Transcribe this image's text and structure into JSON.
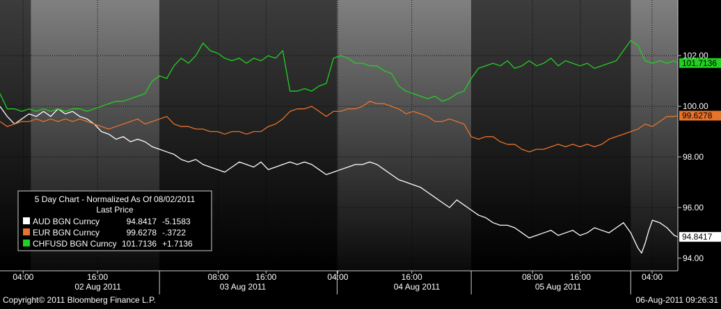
{
  "chart_data": {
    "type": "line",
    "legend": {
      "title": "5 Day Chart - Normalized As Of 08/02/2011",
      "subtitle": "Last Price",
      "placement": "bottom-left"
    },
    "ylim": [
      93.5,
      104.2
    ],
    "y_ticks": [
      "94.00",
      "96.00",
      "98.00",
      "100.00",
      "102.00"
    ],
    "y_tick_values": [
      94,
      96,
      98,
      100,
      102
    ],
    "x_ticks": [
      {
        "label": "04:00",
        "t": 0.064
      },
      {
        "label": "16:00",
        "t": 0.269
      },
      {
        "label": "08:00",
        "t": 0.602
      },
      {
        "label": "16:00",
        "t": 0.734
      },
      {
        "label": "04:00",
        "t": 0.932
      },
      {
        "label": "16:00",
        "t": 1.136
      },
      {
        "label": "08:00",
        "t": 1.469
      },
      {
        "label": "16:00",
        "t": 1.601
      },
      {
        "label": "04:00",
        "t": 1.799
      }
    ],
    "day_labels": [
      {
        "label": "02 Aug 2011",
        "t": 0.27
      },
      {
        "label": "03 Aug 2011",
        "t": 0.67
      },
      {
        "label": "04 Aug 2011",
        "t": 1.15
      },
      {
        "label": "05 Aug 2011",
        "t": 1.54
      }
    ],
    "t_range": [
      0,
      1.87
    ],
    "series": [
      {
        "name": "AUD BGN Curncy",
        "color": "#ffffff",
        "last_label": "94.8417",
        "last_price": "94.8417",
        "change": "-5.1583",
        "points": [
          [
            0,
            100.0
          ],
          [
            0.02,
            99.6
          ],
          [
            0.04,
            99.3
          ],
          [
            0.06,
            99.5
          ],
          [
            0.08,
            99.7
          ],
          [
            0.1,
            99.6
          ],
          [
            0.12,
            99.8
          ],
          [
            0.14,
            99.6
          ],
          [
            0.16,
            99.9
          ],
          [
            0.18,
            99.7
          ],
          [
            0.2,
            99.8
          ],
          [
            0.22,
            99.6
          ],
          [
            0.24,
            99.5
          ],
          [
            0.26,
            99.3
          ],
          [
            0.28,
            99.0
          ],
          [
            0.3,
            98.9
          ],
          [
            0.32,
            98.7
          ],
          [
            0.34,
            98.8
          ],
          [
            0.36,
            98.6
          ],
          [
            0.38,
            98.7
          ],
          [
            0.4,
            98.6
          ],
          [
            0.42,
            98.4
          ],
          [
            0.44,
            98.3
          ],
          [
            0.46,
            98.2
          ],
          [
            0.48,
            98.1
          ],
          [
            0.5,
            97.9
          ],
          [
            0.52,
            97.8
          ],
          [
            0.54,
            97.9
          ],
          [
            0.56,
            97.7
          ],
          [
            0.58,
            97.6
          ],
          [
            0.6,
            97.5
          ],
          [
            0.62,
            97.4
          ],
          [
            0.64,
            97.6
          ],
          [
            0.66,
            97.8
          ],
          [
            0.68,
            97.7
          ],
          [
            0.7,
            97.6
          ],
          [
            0.72,
            97.8
          ],
          [
            0.74,
            97.5
          ],
          [
            0.76,
            97.6
          ],
          [
            0.78,
            97.7
          ],
          [
            0.8,
            97.8
          ],
          [
            0.82,
            97.7
          ],
          [
            0.84,
            97.8
          ],
          [
            0.86,
            97.7
          ],
          [
            0.88,
            97.5
          ],
          [
            0.9,
            97.3
          ],
          [
            0.92,
            97.4
          ],
          [
            0.94,
            97.5
          ],
          [
            0.96,
            97.6
          ],
          [
            0.98,
            97.7
          ],
          [
            1.0,
            97.7
          ],
          [
            1.02,
            97.8
          ],
          [
            1.04,
            97.7
          ],
          [
            1.06,
            97.5
          ],
          [
            1.08,
            97.3
          ],
          [
            1.1,
            97.1
          ],
          [
            1.12,
            97.0
          ],
          [
            1.14,
            96.9
          ],
          [
            1.16,
            96.8
          ],
          [
            1.18,
            96.6
          ],
          [
            1.2,
            96.4
          ],
          [
            1.22,
            96.2
          ],
          [
            1.24,
            96.0
          ],
          [
            1.26,
            96.3
          ],
          [
            1.28,
            96.1
          ],
          [
            1.3,
            95.9
          ],
          [
            1.32,
            95.7
          ],
          [
            1.34,
            95.6
          ],
          [
            1.36,
            95.4
          ],
          [
            1.38,
            95.3
          ],
          [
            1.4,
            95.3
          ],
          [
            1.42,
            95.2
          ],
          [
            1.44,
            95.0
          ],
          [
            1.46,
            94.8
          ],
          [
            1.48,
            94.9
          ],
          [
            1.5,
            95.0
          ],
          [
            1.52,
            95.1
          ],
          [
            1.54,
            94.9
          ],
          [
            1.56,
            95.0
          ],
          [
            1.58,
            95.1
          ],
          [
            1.6,
            94.9
          ],
          [
            1.62,
            95.0
          ],
          [
            1.64,
            95.2
          ],
          [
            1.66,
            95.1
          ],
          [
            1.68,
            95.0
          ],
          [
            1.7,
            95.2
          ],
          [
            1.72,
            95.4
          ],
          [
            1.74,
            95.0
          ],
          [
            1.76,
            94.4
          ],
          [
            1.77,
            94.2
          ],
          [
            1.78,
            94.6
          ],
          [
            1.79,
            95.1
          ],
          [
            1.8,
            95.5
          ],
          [
            1.82,
            95.4
          ],
          [
            1.84,
            95.2
          ],
          [
            1.86,
            94.9
          ],
          [
            1.87,
            94.84
          ]
        ]
      },
      {
        "name": "EUR BGN Curncy",
        "color": "#e8732a",
        "last_label": "99.6278",
        "last_price": "99.6278",
        "change": "-.3722",
        "points": [
          [
            0,
            99.4
          ],
          [
            0.02,
            99.2
          ],
          [
            0.04,
            99.3
          ],
          [
            0.06,
            99.4
          ],
          [
            0.08,
            99.4
          ],
          [
            0.1,
            99.5
          ],
          [
            0.12,
            99.4
          ],
          [
            0.14,
            99.5
          ],
          [
            0.16,
            99.4
          ],
          [
            0.18,
            99.5
          ],
          [
            0.2,
            99.4
          ],
          [
            0.22,
            99.5
          ],
          [
            0.24,
            99.4
          ],
          [
            0.26,
            99.3
          ],
          [
            0.28,
            99.2
          ],
          [
            0.3,
            99.1
          ],
          [
            0.32,
            99.2
          ],
          [
            0.34,
            99.3
          ],
          [
            0.36,
            99.4
          ],
          [
            0.38,
            99.5
          ],
          [
            0.4,
            99.3
          ],
          [
            0.42,
            99.4
          ],
          [
            0.44,
            99.5
          ],
          [
            0.46,
            99.6
          ],
          [
            0.48,
            99.3
          ],
          [
            0.5,
            99.2
          ],
          [
            0.52,
            99.2
          ],
          [
            0.54,
            99.1
          ],
          [
            0.56,
            99.1
          ],
          [
            0.58,
            99.0
          ],
          [
            0.6,
            99.0
          ],
          [
            0.62,
            98.9
          ],
          [
            0.64,
            99.0
          ],
          [
            0.66,
            99.0
          ],
          [
            0.68,
            98.9
          ],
          [
            0.7,
            99.0
          ],
          [
            0.72,
            99.0
          ],
          [
            0.74,
            99.2
          ],
          [
            0.76,
            99.3
          ],
          [
            0.78,
            99.5
          ],
          [
            0.8,
            99.8
          ],
          [
            0.82,
            99.9
          ],
          [
            0.84,
            99.9
          ],
          [
            0.86,
            100.0
          ],
          [
            0.88,
            99.8
          ],
          [
            0.9,
            99.6
          ],
          [
            0.92,
            99.8
          ],
          [
            0.94,
            99.8
          ],
          [
            0.96,
            99.9
          ],
          [
            0.98,
            99.9
          ],
          [
            1.0,
            100.0
          ],
          [
            1.02,
            100.2
          ],
          [
            1.04,
            100.1
          ],
          [
            1.06,
            100.1
          ],
          [
            1.08,
            100.0
          ],
          [
            1.1,
            99.9
          ],
          [
            1.12,
            99.7
          ],
          [
            1.14,
            99.8
          ],
          [
            1.16,
            99.7
          ],
          [
            1.18,
            99.6
          ],
          [
            1.2,
            99.4
          ],
          [
            1.22,
            99.4
          ],
          [
            1.24,
            99.5
          ],
          [
            1.26,
            99.4
          ],
          [
            1.28,
            99.3
          ],
          [
            1.3,
            98.8
          ],
          [
            1.32,
            98.7
          ],
          [
            1.34,
            98.8
          ],
          [
            1.36,
            98.8
          ],
          [
            1.38,
            98.6
          ],
          [
            1.4,
            98.5
          ],
          [
            1.42,
            98.5
          ],
          [
            1.44,
            98.3
          ],
          [
            1.46,
            98.2
          ],
          [
            1.48,
            98.3
          ],
          [
            1.5,
            98.3
          ],
          [
            1.52,
            98.4
          ],
          [
            1.54,
            98.5
          ],
          [
            1.56,
            98.4
          ],
          [
            1.58,
            98.5
          ],
          [
            1.6,
            98.4
          ],
          [
            1.62,
            98.5
          ],
          [
            1.64,
            98.4
          ],
          [
            1.66,
            98.5
          ],
          [
            1.68,
            98.7
          ],
          [
            1.7,
            98.8
          ],
          [
            1.72,
            98.9
          ],
          [
            1.74,
            99.0
          ],
          [
            1.76,
            99.1
          ],
          [
            1.78,
            99.3
          ],
          [
            1.8,
            99.2
          ],
          [
            1.82,
            99.4
          ],
          [
            1.84,
            99.6
          ],
          [
            1.86,
            99.6
          ],
          [
            1.87,
            99.63
          ]
        ]
      },
      {
        "name": "CHFUSD BGN Curncy",
        "color": "#22d022",
        "last_label": "101.7136",
        "last_price": "101.7136",
        "change": "+1.7136",
        "points": [
          [
            0,
            100.5
          ],
          [
            0.02,
            99.9
          ],
          [
            0.04,
            99.9
          ],
          [
            0.06,
            99.8
          ],
          [
            0.08,
            99.9
          ],
          [
            0.1,
            99.8
          ],
          [
            0.12,
            99.9
          ],
          [
            0.14,
            99.8
          ],
          [
            0.16,
            99.9
          ],
          [
            0.18,
            99.8
          ],
          [
            0.2,
            99.9
          ],
          [
            0.22,
            99.9
          ],
          [
            0.24,
            99.8
          ],
          [
            0.26,
            99.9
          ],
          [
            0.28,
            100.0
          ],
          [
            0.3,
            100.1
          ],
          [
            0.32,
            100.2
          ],
          [
            0.34,
            100.2
          ],
          [
            0.36,
            100.3
          ],
          [
            0.38,
            100.4
          ],
          [
            0.4,
            100.5
          ],
          [
            0.42,
            101.0
          ],
          [
            0.44,
            101.2
          ],
          [
            0.46,
            101.1
          ],
          [
            0.48,
            101.6
          ],
          [
            0.5,
            101.9
          ],
          [
            0.52,
            101.7
          ],
          [
            0.54,
            102.0
          ],
          [
            0.56,
            102.5
          ],
          [
            0.58,
            102.2
          ],
          [
            0.6,
            102.1
          ],
          [
            0.62,
            101.9
          ],
          [
            0.64,
            101.8
          ],
          [
            0.66,
            101.9
          ],
          [
            0.68,
            101.7
          ],
          [
            0.7,
            101.9
          ],
          [
            0.72,
            101.8
          ],
          [
            0.74,
            102.0
          ],
          [
            0.76,
            101.9
          ],
          [
            0.78,
            102.2
          ],
          [
            0.8,
            100.6
          ],
          [
            0.82,
            100.6
          ],
          [
            0.84,
            100.7
          ],
          [
            0.86,
            100.6
          ],
          [
            0.88,
            100.8
          ],
          [
            0.9,
            100.9
          ],
          [
            0.92,
            101.9
          ],
          [
            0.94,
            102.0
          ],
          [
            0.96,
            101.9
          ],
          [
            0.98,
            101.7
          ],
          [
            1.0,
            101.7
          ],
          [
            1.02,
            101.6
          ],
          [
            1.04,
            101.6
          ],
          [
            1.06,
            101.4
          ],
          [
            1.08,
            101.3
          ],
          [
            1.1,
            100.8
          ],
          [
            1.12,
            100.6
          ],
          [
            1.14,
            100.5
          ],
          [
            1.16,
            100.4
          ],
          [
            1.18,
            100.3
          ],
          [
            1.2,
            100.4
          ],
          [
            1.22,
            100.2
          ],
          [
            1.24,
            100.3
          ],
          [
            1.26,
            100.5
          ],
          [
            1.28,
            100.6
          ],
          [
            1.3,
            101.1
          ],
          [
            1.32,
            101.5
          ],
          [
            1.34,
            101.6
          ],
          [
            1.36,
            101.7
          ],
          [
            1.38,
            101.6
          ],
          [
            1.4,
            101.8
          ],
          [
            1.42,
            101.5
          ],
          [
            1.44,
            101.6
          ],
          [
            1.46,
            101.8
          ],
          [
            1.48,
            101.6
          ],
          [
            1.5,
            101.7
          ],
          [
            1.52,
            101.9
          ],
          [
            1.54,
            101.6
          ],
          [
            1.56,
            101.8
          ],
          [
            1.58,
            101.7
          ],
          [
            1.6,
            101.6
          ],
          [
            1.62,
            101.7
          ],
          [
            1.64,
            101.5
          ],
          [
            1.66,
            101.6
          ],
          [
            1.68,
            101.7
          ],
          [
            1.7,
            101.8
          ],
          [
            1.72,
            102.2
          ],
          [
            1.74,
            102.6
          ],
          [
            1.76,
            102.4
          ],
          [
            1.78,
            101.8
          ],
          [
            1.8,
            101.7
          ],
          [
            1.82,
            101.8
          ],
          [
            1.84,
            101.7
          ],
          [
            1.86,
            101.8
          ],
          [
            1.87,
            101.71
          ]
        ]
      }
    ]
  },
  "footer": {
    "copyright": "Copyright© 2011 Bloomberg Finance L.P.",
    "timestamp": "06-Aug-2011 09:26:31"
  }
}
